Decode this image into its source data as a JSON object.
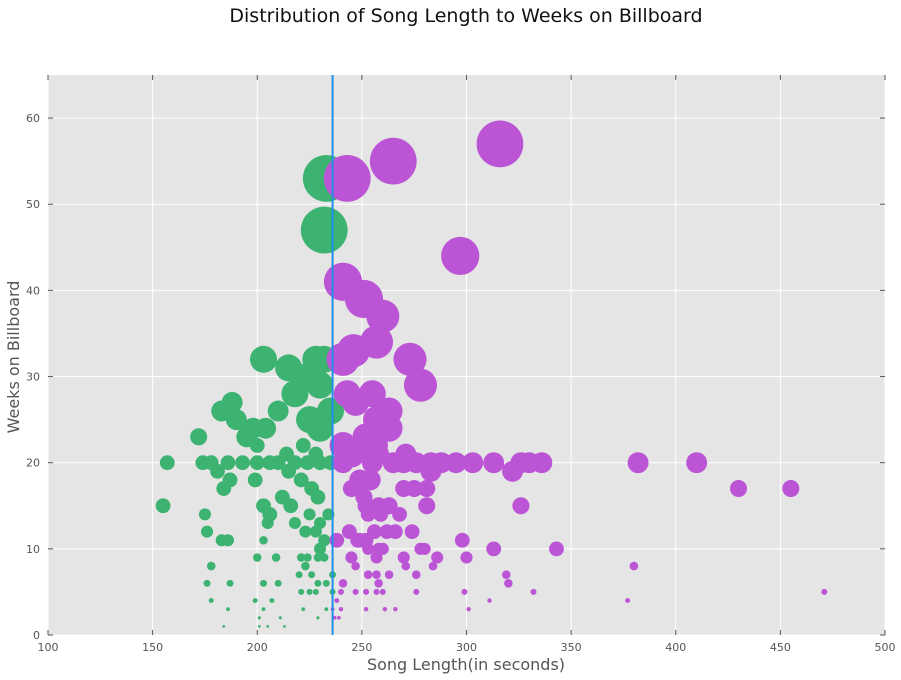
{
  "chart_data": {
    "type": "scatter",
    "title": "Distribution of Song Length to Weeks on Billboard",
    "xlabel": "Song Length(in seconds)",
    "ylabel": "Weeks on Billboard",
    "xlim": [
      100,
      500
    ],
    "ylim": [
      0,
      65
    ],
    "xticks": [
      "100",
      "150",
      "200",
      "250",
      "300",
      "350",
      "400",
      "450",
      "500"
    ],
    "yticks": [
      "0",
      "10",
      "20",
      "30",
      "40",
      "50",
      "60"
    ],
    "grid": true,
    "background": "#e5e5e5",
    "vline": {
      "x": 236,
      "color": "#1f8fe8"
    },
    "series": [
      {
        "color": "#3cb371",
        "points": [
          [
            233,
            53
          ],
          [
            232,
            47
          ],
          [
            203,
            32
          ],
          [
            215,
            31
          ],
          [
            228,
            32
          ],
          [
            232,
            32
          ],
          [
            218,
            28
          ],
          [
            224,
            30
          ],
          [
            230,
            29
          ],
          [
            235,
            26
          ],
          [
            225,
            25
          ],
          [
            230,
            24
          ],
          [
            188,
            27
          ],
          [
            183,
            26
          ],
          [
            190,
            25
          ],
          [
            198,
            24
          ],
          [
            204,
            24
          ],
          [
            210,
            26
          ],
          [
            195,
            23
          ],
          [
            172,
            23
          ],
          [
            200,
            22
          ],
          [
            222,
            22
          ],
          [
            214,
            21
          ],
          [
            228,
            21
          ],
          [
            157,
            20
          ],
          [
            174,
            20
          ],
          [
            178,
            20
          ],
          [
            186,
            20
          ],
          [
            193,
            20
          ],
          [
            200,
            20
          ],
          [
            206,
            20
          ],
          [
            210,
            20
          ],
          [
            218,
            20
          ],
          [
            224,
            20
          ],
          [
            230,
            20
          ],
          [
            235,
            20
          ],
          [
            181,
            19
          ],
          [
            215,
            19
          ],
          [
            199,
            18
          ],
          [
            221,
            18
          ],
          [
            187,
            18
          ],
          [
            184,
            17
          ],
          [
            226,
            17
          ],
          [
            212,
            16
          ],
          [
            229,
            16
          ],
          [
            155,
            15
          ],
          [
            203,
            15
          ],
          [
            216,
            15
          ],
          [
            206,
            14
          ],
          [
            175,
            14
          ],
          [
            225,
            14
          ],
          [
            234,
            14
          ],
          [
            218,
            13
          ],
          [
            205,
            13
          ],
          [
            230,
            13
          ],
          [
            176,
            12
          ],
          [
            223,
            12
          ],
          [
            228,
            12
          ],
          [
            232,
            11
          ],
          [
            183,
            11
          ],
          [
            186,
            11
          ],
          [
            230,
            10
          ],
          [
            203,
            11
          ],
          [
            200,
            9
          ],
          [
            209,
            9
          ],
          [
            221,
            9
          ],
          [
            224,
            9
          ],
          [
            229,
            9
          ],
          [
            232,
            9
          ],
          [
            178,
            8
          ],
          [
            223,
            8
          ],
          [
            220,
            7
          ],
          [
            226,
            7
          ],
          [
            236,
            7
          ],
          [
            176,
            6
          ],
          [
            187,
            6
          ],
          [
            203,
            6
          ],
          [
            210,
            6
          ],
          [
            229,
            6
          ],
          [
            233,
            6
          ],
          [
            221,
            5
          ],
          [
            225,
            5
          ],
          [
            228,
            5
          ],
          [
            236,
            5
          ],
          [
            178,
            4
          ],
          [
            199,
            4
          ],
          [
            207,
            4
          ],
          [
            186,
            3
          ],
          [
            203,
            3
          ],
          [
            222,
            3
          ],
          [
            233,
            3
          ],
          [
            201,
            2
          ],
          [
            211,
            2
          ],
          [
            229,
            2
          ],
          [
            184,
            1
          ],
          [
            201,
            1
          ],
          [
            205,
            1
          ],
          [
            213,
            1
          ]
        ],
        "sizes": [
          900,
          900,
          300,
          300,
          300,
          300,
          300,
          300,
          300,
          300,
          300,
          300,
          180,
          180,
          180,
          180,
          180,
          180,
          180,
          120,
          90,
          90,
          90,
          90,
          90,
          90,
          90,
          90,
          90,
          90,
          90,
          90,
          90,
          90,
          90,
          90,
          90,
          90,
          90,
          90,
          90,
          90,
          90,
          90,
          90,
          90,
          90,
          90,
          90,
          60,
          60,
          60,
          60,
          60,
          60,
          60,
          60,
          60,
          60,
          60,
          60,
          60,
          30,
          30,
          30,
          30,
          30,
          30,
          30,
          30,
          30,
          20,
          20,
          20,
          20,
          20,
          20,
          20,
          20,
          20,
          15,
          15,
          15,
          15,
          10,
          10,
          10,
          6,
          6,
          6,
          6,
          4,
          4,
          4,
          3,
          3,
          3,
          3
        ]
      },
      {
        "color": "#bb55d6",
        "points": [
          [
            316,
            57
          ],
          [
            265,
            55
          ],
          [
            243,
            53
          ],
          [
            297,
            44
          ],
          [
            241,
            41
          ],
          [
            251,
            39
          ],
          [
            260,
            37
          ],
          [
            257,
            34
          ],
          [
            246,
            33
          ],
          [
            241,
            32
          ],
          [
            273,
            32
          ],
          [
            278,
            29
          ],
          [
            243,
            28
          ],
          [
            255,
            28
          ],
          [
            247,
            27
          ],
          [
            263,
            26
          ],
          [
            257,
            25
          ],
          [
            252,
            23
          ],
          [
            256,
            22
          ],
          [
            263,
            24
          ],
          [
            241,
            22
          ],
          [
            245,
            21
          ],
          [
            258,
            21
          ],
          [
            271,
            21
          ],
          [
            241,
            20
          ],
          [
            255,
            20
          ],
          [
            265,
            20
          ],
          [
            270,
            20
          ],
          [
            276,
            20
          ],
          [
            283,
            20
          ],
          [
            288,
            20
          ],
          [
            295,
            20
          ],
          [
            303,
            20
          ],
          [
            313,
            20
          ],
          [
            326,
            20
          ],
          [
            330,
            20
          ],
          [
            336,
            20
          ],
          [
            382,
            20
          ],
          [
            410,
            20
          ],
          [
            322,
            19
          ],
          [
            283,
            19
          ],
          [
            249,
            18
          ],
          [
            254,
            18
          ],
          [
            245,
            17
          ],
          [
            251,
            16
          ],
          [
            270,
            17
          ],
          [
            275,
            17
          ],
          [
            281,
            17
          ],
          [
            430,
            17
          ],
          [
            455,
            17
          ],
          [
            252,
            15
          ],
          [
            258,
            15
          ],
          [
            263,
            15
          ],
          [
            281,
            15
          ],
          [
            326,
            15
          ],
          [
            253,
            14
          ],
          [
            259,
            14
          ],
          [
            268,
            14
          ],
          [
            266,
            12
          ],
          [
            256,
            12
          ],
          [
            262,
            12
          ],
          [
            244,
            12
          ],
          [
            238,
            11
          ],
          [
            248,
            11
          ],
          [
            252,
            11
          ],
          [
            274,
            12
          ],
          [
            298,
            11
          ],
          [
            343,
            10
          ],
          [
            313,
            10
          ],
          [
            249,
            11
          ],
          [
            258,
            10
          ],
          [
            260,
            10
          ],
          [
            253,
            10
          ],
          [
            278,
            10
          ],
          [
            280,
            10
          ],
          [
            245,
            9
          ],
          [
            257,
            9
          ],
          [
            270,
            9
          ],
          [
            286,
            9
          ],
          [
            300,
            9
          ],
          [
            247,
            8
          ],
          [
            271,
            8
          ],
          [
            284,
            8
          ],
          [
            380,
            8
          ],
          [
            253,
            7
          ],
          [
            257,
            7
          ],
          [
            263,
            7
          ],
          [
            276,
            7
          ],
          [
            319,
            7
          ],
          [
            241,
            6
          ],
          [
            258,
            6
          ],
          [
            320,
            6
          ],
          [
            240,
            5
          ],
          [
            247,
            5
          ],
          [
            252,
            5
          ],
          [
            257,
            5
          ],
          [
            260,
            5
          ],
          [
            276,
            5
          ],
          [
            299,
            5
          ],
          [
            332,
            5
          ],
          [
            471,
            5
          ],
          [
            238,
            4
          ],
          [
            377,
            4
          ],
          [
            240,
            3
          ],
          [
            252,
            3
          ],
          [
            261,
            3
          ],
          [
            266,
            3
          ],
          [
            301,
            3
          ],
          [
            311,
            4
          ],
          [
            237,
            2
          ],
          [
            239,
            2
          ],
          [
            236,
            3
          ]
        ],
        "sizes": [
          900,
          900,
          900,
          600,
          600,
          600,
          450,
          450,
          450,
          450,
          450,
          450,
          300,
          300,
          300,
          300,
          300,
          300,
          300,
          300,
          300,
          300,
          180,
          180,
          180,
          180,
          180,
          180,
          180,
          180,
          180,
          180,
          180,
          180,
          180,
          180,
          180,
          180,
          180,
          180,
          180,
          180,
          180,
          120,
          120,
          120,
          120,
          120,
          120,
          120,
          120,
          120,
          120,
          120,
          120,
          90,
          90,
          90,
          90,
          90,
          90,
          90,
          90,
          90,
          90,
          90,
          90,
          90,
          90,
          90,
          60,
          60,
          60,
          60,
          60,
          60,
          60,
          60,
          60,
          60,
          30,
          30,
          30,
          30,
          30,
          30,
          30,
          30,
          30,
          30,
          30,
          30,
          15,
          15,
          15,
          15,
          15,
          15,
          15,
          15,
          15,
          10,
          10,
          8,
          8,
          8,
          8,
          8,
          8,
          6,
          6,
          6
        ]
      }
    ]
  }
}
